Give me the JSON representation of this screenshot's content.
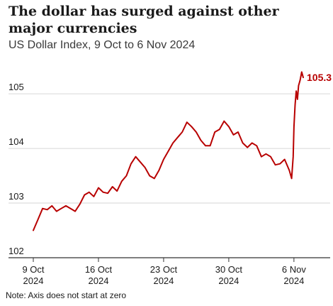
{
  "chart_data": {
    "type": "line",
    "title": "The dollar has surged against other major currencies",
    "subtitle": "US Dollar Index, 9 Oct to 6 Nov 2024",
    "note": "Note: Axis does not start at zero",
    "xlabel": "",
    "ylabel": "",
    "grid": "horizontal",
    "line_color": "#b80000",
    "ylim": [
      102,
      105.6
    ],
    "yticks": [
      102,
      103,
      104,
      105
    ],
    "xlim": [
      "2024-10-09",
      "2024-11-07"
    ],
    "xticks": [
      {
        "date": "2024-10-09",
        "line1": "9 Oct",
        "line2": "2024"
      },
      {
        "date": "2024-10-16",
        "line1": "16 Oct",
        "line2": "2024"
      },
      {
        "date": "2024-10-23",
        "line1": "23 Oct",
        "line2": "2024"
      },
      {
        "date": "2024-10-30",
        "line1": "30 Oct",
        "line2": "2024"
      },
      {
        "date": "2024-11-06",
        "line1": "6 Nov",
        "line2": "2024"
      }
    ],
    "end_label": "105.3",
    "series": [
      {
        "x": [
          "2024-10-09 00:00",
          "2024-10-09 12:00",
          "2024-10-10 00:00",
          "2024-10-10 12:00",
          "2024-10-11 00:00",
          "2024-10-11 12:00",
          "2024-10-12 00:00",
          "2024-10-12 12:00",
          "2024-10-13 00:00",
          "2024-10-13 12:00",
          "2024-10-14 00:00",
          "2024-10-14 12:00",
          "2024-10-15 00:00",
          "2024-10-15 12:00",
          "2024-10-16 00:00",
          "2024-10-16 12:00",
          "2024-10-17 00:00",
          "2024-10-17 12:00",
          "2024-10-18 00:00",
          "2024-10-18 12:00",
          "2024-10-19 00:00",
          "2024-10-19 12:00",
          "2024-10-20 00:00",
          "2024-10-20 12:00",
          "2024-10-21 00:00",
          "2024-10-21 12:00",
          "2024-10-22 00:00",
          "2024-10-22 12:00",
          "2024-10-23 00:00",
          "2024-10-23 12:00",
          "2024-10-24 00:00",
          "2024-10-24 12:00",
          "2024-10-25 00:00",
          "2024-10-25 12:00",
          "2024-10-26 00:00",
          "2024-10-26 12:00",
          "2024-10-27 00:00",
          "2024-10-27 12:00",
          "2024-10-28 00:00",
          "2024-10-28 12:00",
          "2024-10-29 00:00",
          "2024-10-29 12:00",
          "2024-10-30 00:00",
          "2024-10-30 12:00",
          "2024-10-31 00:00",
          "2024-10-31 12:00",
          "2024-11-01 00:00",
          "2024-11-01 12:00",
          "2024-11-02 00:00",
          "2024-11-02 12:00",
          "2024-11-03 00:00",
          "2024-11-03 12:00",
          "2024-11-04 00:00",
          "2024-11-04 12:00",
          "2024-11-05 00:00",
          "2024-11-05 12:00",
          "2024-11-05 18:00",
          "2024-11-05 22:00",
          "2024-11-06 00:00",
          "2024-11-06 03:00",
          "2024-11-06 06:00",
          "2024-11-06 09:00",
          "2024-11-06 12:00",
          "2024-11-06 16:00",
          "2024-11-06 20:00",
          "2024-11-07 00:00"
        ],
        "y": [
          102.5,
          102.7,
          102.9,
          102.88,
          102.95,
          102.85,
          102.9,
          102.95,
          102.9,
          102.85,
          102.98,
          103.15,
          103.2,
          103.12,
          103.28,
          103.2,
          103.18,
          103.3,
          103.22,
          103.4,
          103.5,
          103.72,
          103.85,
          103.75,
          103.65,
          103.5,
          103.45,
          103.6,
          103.8,
          103.95,
          104.1,
          104.2,
          104.3,
          104.48,
          104.4,
          104.3,
          104.15,
          104.05,
          104.05,
          104.3,
          104.35,
          104.5,
          104.4,
          104.25,
          104.3,
          104.1,
          104.02,
          104.1,
          104.05,
          103.85,
          103.9,
          103.85,
          103.7,
          103.72,
          103.8,
          103.6,
          103.45,
          103.85,
          104.4,
          104.8,
          105.05,
          104.9,
          105.15,
          105.25,
          105.4,
          105.3
        ]
      }
    ]
  }
}
